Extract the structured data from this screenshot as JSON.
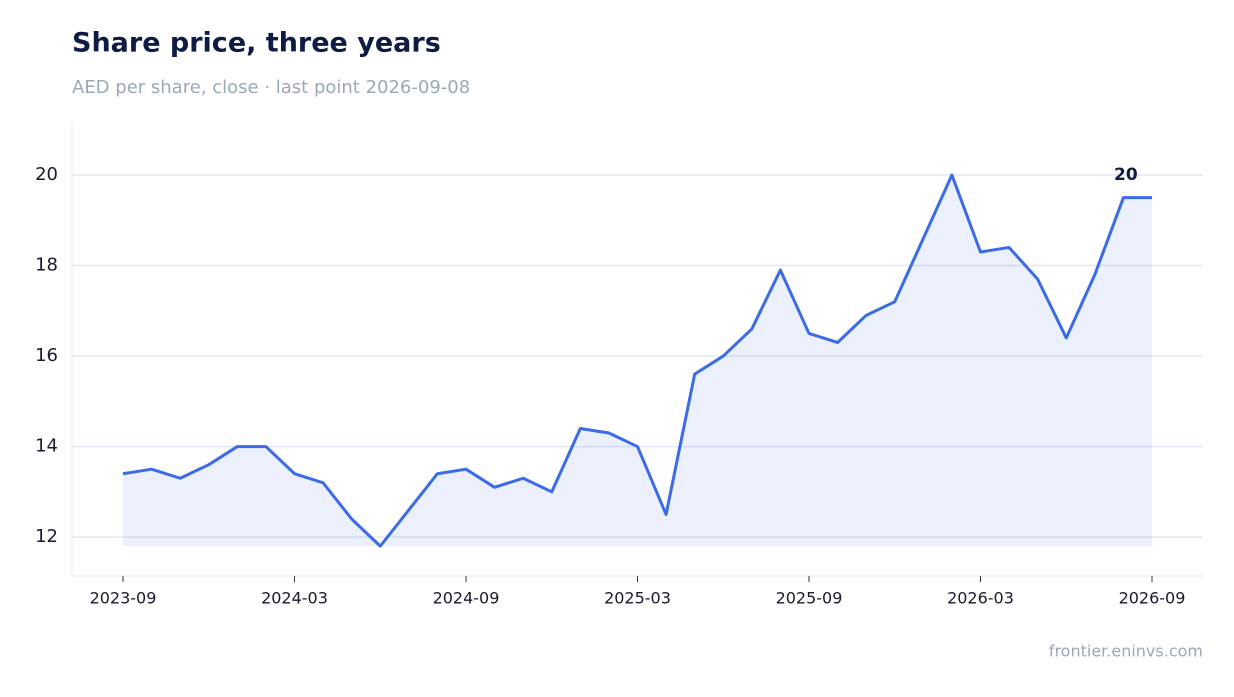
{
  "chart_data": {
    "type": "line",
    "title": "Share price, three years",
    "subtitle": "AED per share, close · last point 2026-09-08",
    "source": "frontier.eninvs.com",
    "x": [
      "2023-09",
      "2023-10",
      "2023-11",
      "2023-12",
      "2024-01",
      "2024-02",
      "2024-03",
      "2024-04",
      "2024-05",
      "2024-06",
      "2024-07",
      "2024-08",
      "2024-09",
      "2024-10",
      "2024-11",
      "2024-12",
      "2025-01",
      "2025-02",
      "2025-03",
      "2025-04",
      "2025-05",
      "2025-06",
      "2025-07",
      "2025-08",
      "2025-09",
      "2025-10",
      "2025-11",
      "2025-12",
      "2026-01",
      "2026-02",
      "2026-03",
      "2026-04",
      "2026-05",
      "2026-06",
      "2026-07",
      "2026-08",
      "2026-09"
    ],
    "series": [
      {
        "name": "Close",
        "color": "#3b6be6",
        "values": [
          13.4,
          13.5,
          13.3,
          13.6,
          14.0,
          14.0,
          13.4,
          13.2,
          12.4,
          11.8,
          12.6,
          13.4,
          13.5,
          13.1,
          13.3,
          13.0,
          14.4,
          14.3,
          14.0,
          12.5,
          15.6,
          16.0,
          16.6,
          17.9,
          16.5,
          16.3,
          16.9,
          17.2,
          18.6,
          20.0,
          18.3,
          18.4,
          17.7,
          16.4,
          17.8,
          19.5,
          19.5
        ]
      }
    ],
    "xticks": [
      "2023-09",
      "2024-03",
      "2024-09",
      "2025-03",
      "2025-09",
      "2026-03",
      "2026-09"
    ],
    "ylim": [
      11.14,
      21.15
    ],
    "yticks": [
      12,
      14,
      16,
      18,
      20
    ],
    "grid": true,
    "annotation": {
      "x": "2026-07",
      "y": 20,
      "text": "20"
    }
  }
}
